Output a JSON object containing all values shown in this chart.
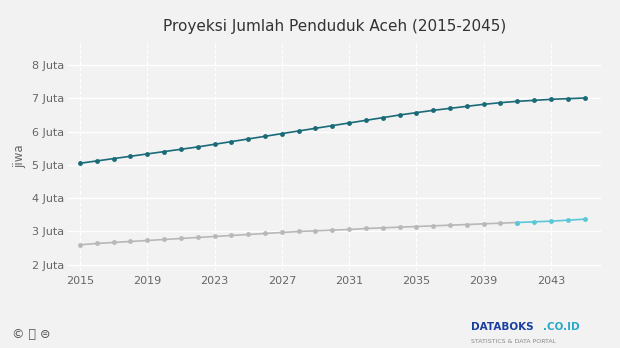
{
  "title": "Proyeksi Jumlah Penduduk Aceh (2015-2045)",
  "ylabel": "jiwa",
  "x_start": 2015,
  "x_end": 2045,
  "yticks": [
    2000000,
    3000000,
    4000000,
    5000000,
    6000000,
    7000000,
    8000000
  ],
  "ytick_labels": [
    "2 Juta",
    "3 Juta",
    "4 Juta",
    "5 Juta",
    "6 Juta",
    "7 Juta",
    "8 Juta"
  ],
  "xticks": [
    2015,
    2019,
    2023,
    2027,
    2031,
    2035,
    2039,
    2043
  ],
  "ylim": [
    1800000,
    8700000
  ],
  "xlim": [
    2014.3,
    2046.0
  ],
  "line1_color": "#1a6b78",
  "line2_color": "#b8b8b8",
  "line2_highlight_color": "#5bc8d8",
  "marker_size": 3.5,
  "background_color": "#f2f2f2",
  "grid_color": "#ffffff",
  "line1_values": [
    5050000,
    5120000,
    5190000,
    5260000,
    5330000,
    5400000,
    5470000,
    5540000,
    5620000,
    5700000,
    5780000,
    5860000,
    5940000,
    6020000,
    6100000,
    6180000,
    6260000,
    6340000,
    6420000,
    6500000,
    6570000,
    6640000,
    6700000,
    6760000,
    6820000,
    6870000,
    6910000,
    6940000,
    6970000,
    6990000,
    7010000
  ],
  "line2_values": [
    2600000,
    2640000,
    2670000,
    2700000,
    2730000,
    2760000,
    2790000,
    2820000,
    2850000,
    2880000,
    2910000,
    2940000,
    2970000,
    3000000,
    3020000,
    3040000,
    3060000,
    3090000,
    3110000,
    3130000,
    3150000,
    3170000,
    3190000,
    3210000,
    3230000,
    3250000,
    3270000,
    3290000,
    3310000,
    3340000,
    3370000
  ],
  "n_highlight": 5,
  "title_fontsize": 11,
  "axis_label_fontsize": 8.5,
  "tick_fontsize": 8,
  "footer_icons": "© ⓘ ⊜",
  "footer_databoks": "DATABOKS",
  "footer_coid": ".CO.ID",
  "footer_sub": "STATISTICS & DATA PORTAL",
  "databoks_color": "#1a3fa0",
  "coid_color": "#29a8c8"
}
